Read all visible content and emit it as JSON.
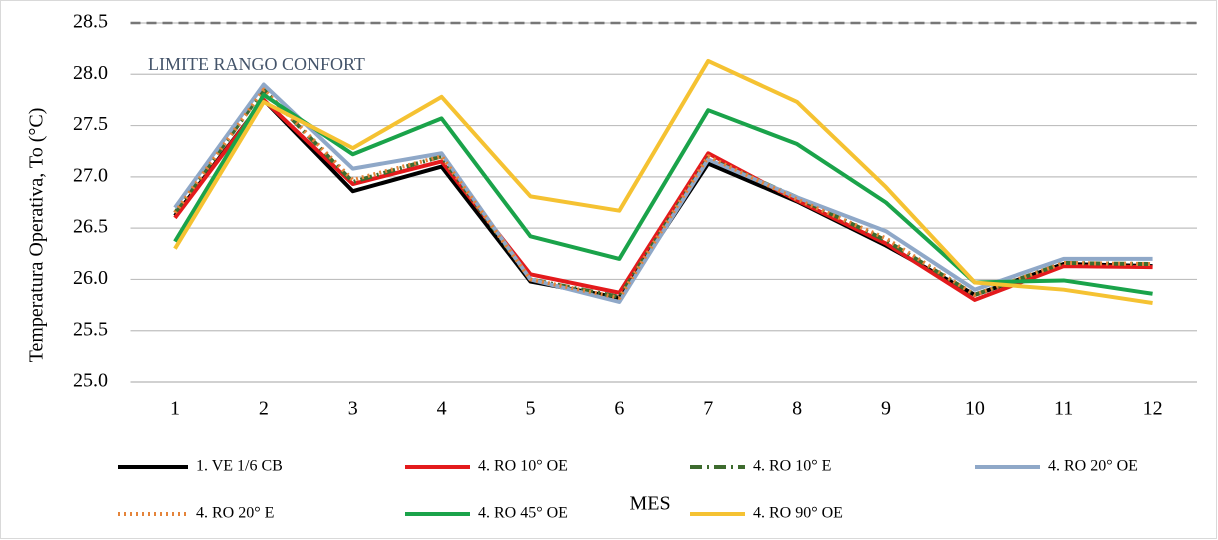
{
  "chart_data": {
    "type": "line",
    "y_label": "Temperatura Operativa, To (°C)",
    "x_label": "MES",
    "categories": [
      "1",
      "2",
      "3",
      "4",
      "5",
      "6",
      "7",
      "8",
      "9",
      "10",
      "11",
      "12"
    ],
    "ylim": [
      25.0,
      28.5
    ],
    "yticks": [
      {
        "value": 25.0,
        "label": "25.0"
      },
      25.5,
      {
        "value": 26.0,
        "label": "26.0"
      },
      26.5,
      {
        "value": 27.0,
        "label": "27.0"
      },
      27.5,
      {
        "value": 28.0,
        "label": "28.0"
      },
      28.5
    ],
    "grid": true,
    "limit": {
      "value": 28.5,
      "label": "LIMITE RANGO CONFORT"
    },
    "legend": "bottom",
    "series": [
      {
        "name": "1. VE 1/6 CB",
        "color": "#000000",
        "style": "solid",
        "values": [
          26.62,
          27.75,
          26.86,
          27.1,
          25.98,
          25.82,
          27.13,
          26.76,
          26.33,
          25.85,
          26.15,
          26.13
        ]
      },
      {
        "name": "4. RO 10° OE",
        "color": "#e31a1c",
        "style": "solid",
        "values": [
          26.6,
          27.75,
          26.93,
          27.15,
          26.05,
          25.87,
          27.23,
          26.77,
          26.35,
          25.8,
          26.13,
          26.12
        ]
      },
      {
        "name": "4. RO 10° E",
        "color": "#3d6b2e",
        "style": "dashdot",
        "values": [
          26.65,
          27.85,
          26.95,
          27.2,
          26.0,
          25.83,
          27.18,
          26.8,
          26.38,
          25.85,
          26.16,
          26.15
        ]
      },
      {
        "name": "4. RO 20° OE",
        "color": "#8fa8c8",
        "style": "solid",
        "values": [
          26.7,
          27.9,
          27.08,
          27.23,
          26.0,
          25.78,
          27.17,
          26.8,
          26.47,
          25.9,
          26.2,
          26.2
        ]
      },
      {
        "name": "4. RO 20° E",
        "color": "#e5843a",
        "style": "dotted",
        "values": [
          26.65,
          27.85,
          26.97,
          27.2,
          26.0,
          25.82,
          27.2,
          26.78,
          26.4,
          25.85,
          26.16,
          26.15
        ]
      },
      {
        "name": "4. RO 45° OE",
        "color": "#1aa34a",
        "style": "solid",
        "values": [
          26.37,
          27.8,
          27.22,
          27.57,
          26.42,
          26.2,
          27.65,
          27.32,
          26.75,
          25.97,
          25.99,
          25.86
        ]
      },
      {
        "name": "4. RO 90° OE",
        "color": "#f5c232",
        "style": "solid",
        "values": [
          26.3,
          27.73,
          27.28,
          27.78,
          26.81,
          26.67,
          28.13,
          27.73,
          26.9,
          25.97,
          25.9,
          25.77
        ]
      }
    ]
  }
}
